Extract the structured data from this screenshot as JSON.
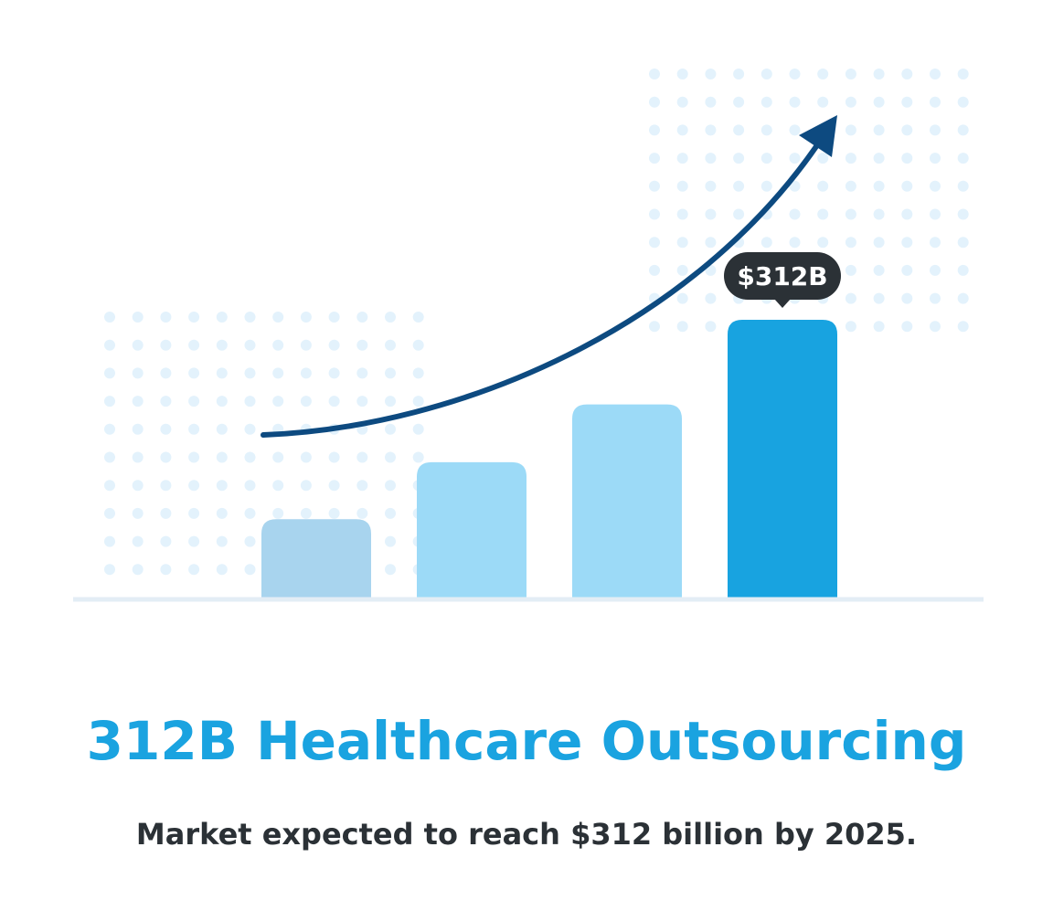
{
  "chart_data": {
    "type": "bar",
    "title": "312B Healthcare Outsourcing",
    "subtitle": "Market expected to reach $312 billion by 2025.",
    "values": [
      88,
      152,
      217,
      312
    ],
    "value_labels": [
      null,
      null,
      null,
      "$312B"
    ],
    "colors": [
      "#a8d4ee",
      "#9cdaf7",
      "#9cdaf7",
      "#18a3e0"
    ]
  }
}
